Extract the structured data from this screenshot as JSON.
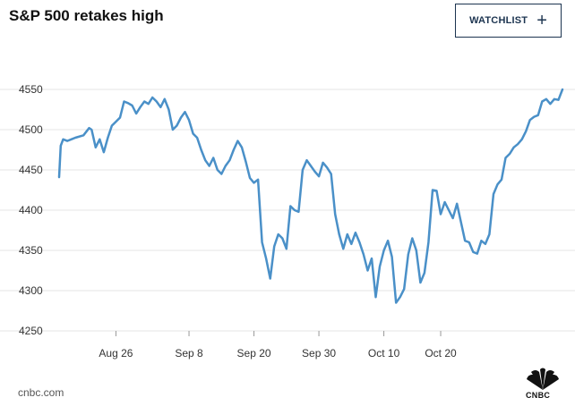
{
  "header": {
    "title": "S&P 500 retakes high",
    "watchlist_label": "WATCHLIST",
    "watchlist_icon": "plus-icon"
  },
  "footer": {
    "source": "cnbc.com",
    "logo_text": "CNBC",
    "logo_icon": "peacock-logo-icon"
  },
  "colors": {
    "line": "#4a90c8",
    "grid": "#e6e6e6",
    "button_border": "#1c3450"
  },
  "chart_data": {
    "type": "line",
    "title": "S&P 500 retakes high",
    "xlabel": "",
    "ylabel": "",
    "ylim": [
      4250,
      4575
    ],
    "yticks": [
      4250,
      4300,
      4350,
      4400,
      4450,
      4500,
      4550
    ],
    "xticks": [
      {
        "label": "Aug 26",
        "x": 7
      },
      {
        "label": "Sep 8",
        "x": 16
      },
      {
        "label": "Sep 20",
        "x": 24
      },
      {
        "label": "Sep 30",
        "x": 32
      },
      {
        "label": "Oct 10",
        "x": 40
      },
      {
        "label": "Oct 20",
        "x": 47
      }
    ],
    "grid": true,
    "series": [
      {
        "values": [
          [
            0.0,
            4441
          ],
          [
            0.2,
            4480
          ],
          [
            0.5,
            4488
          ],
          [
            1.0,
            4486
          ],
          [
            1.5,
            4488
          ],
          [
            2.0,
            4490
          ],
          [
            3.0,
            4493
          ],
          [
            3.7,
            4502
          ],
          [
            4.0,
            4500
          ],
          [
            4.5,
            4478
          ],
          [
            5.0,
            4488
          ],
          [
            5.5,
            4472
          ],
          [
            6.0,
            4490
          ],
          [
            6.5,
            4505
          ],
          [
            7.0,
            4510
          ],
          [
            7.5,
            4515
          ],
          [
            8.0,
            4535
          ],
          [
            8.5,
            4533
          ],
          [
            9.0,
            4530
          ],
          [
            9.5,
            4520
          ],
          [
            10.0,
            4528
          ],
          [
            10.5,
            4535
          ],
          [
            11.0,
            4532
          ],
          [
            11.5,
            4540
          ],
          [
            12.0,
            4535
          ],
          [
            12.5,
            4528
          ],
          [
            13.0,
            4538
          ],
          [
            13.5,
            4525
          ],
          [
            14.0,
            4500
          ],
          [
            14.5,
            4505
          ],
          [
            15.0,
            4515
          ],
          [
            15.5,
            4522
          ],
          [
            16.0,
            4512
          ],
          [
            16.5,
            4495
          ],
          [
            17.0,
            4490
          ],
          [
            17.5,
            4475
          ],
          [
            18.0,
            4462
          ],
          [
            18.5,
            4455
          ],
          [
            19.0,
            4465
          ],
          [
            19.5,
            4450
          ],
          [
            20.0,
            4445
          ],
          [
            20.5,
            4455
          ],
          [
            21.0,
            4462
          ],
          [
            21.5,
            4475
          ],
          [
            22.0,
            4486
          ],
          [
            22.5,
            4478
          ],
          [
            23.0,
            4460
          ],
          [
            23.5,
            4440
          ],
          [
            24.0,
            4434
          ],
          [
            24.5,
            4438
          ],
          [
            25.0,
            4360
          ],
          [
            25.5,
            4340
          ],
          [
            26.0,
            4315
          ],
          [
            26.5,
            4355
          ],
          [
            27.0,
            4370
          ],
          [
            27.5,
            4365
          ],
          [
            28.0,
            4352
          ],
          [
            28.5,
            4405
          ],
          [
            29.0,
            4400
          ],
          [
            29.5,
            4398
          ],
          [
            30.0,
            4450
          ],
          [
            30.5,
            4462
          ],
          [
            31.0,
            4455
          ],
          [
            31.5,
            4448
          ],
          [
            32.0,
            4442
          ],
          [
            32.5,
            4459
          ],
          [
            33.0,
            4453
          ],
          [
            33.5,
            4445
          ],
          [
            34.0,
            4395
          ],
          [
            34.5,
            4370
          ],
          [
            35.0,
            4352
          ],
          [
            35.5,
            4370
          ],
          [
            36.0,
            4358
          ],
          [
            36.5,
            4372
          ],
          [
            37.0,
            4360
          ],
          [
            37.5,
            4345
          ],
          [
            38.0,
            4325
          ],
          [
            38.5,
            4340
          ],
          [
            39.0,
            4292
          ],
          [
            39.5,
            4330
          ],
          [
            40.0,
            4350
          ],
          [
            40.5,
            4362
          ],
          [
            41.0,
            4342
          ],
          [
            41.5,
            4285
          ],
          [
            42.0,
            4292
          ],
          [
            42.5,
            4302
          ],
          [
            43.0,
            4345
          ],
          [
            43.5,
            4365
          ],
          [
            44.0,
            4350
          ],
          [
            44.5,
            4310
          ],
          [
            45.0,
            4322
          ],
          [
            45.5,
            4360
          ],
          [
            46.0,
            4425
          ],
          [
            46.5,
            4424
          ],
          [
            47.0,
            4395
          ],
          [
            47.5,
            4410
          ],
          [
            48.0,
            4400
          ],
          [
            48.5,
            4390
          ],
          [
            49.0,
            4408
          ],
          [
            49.5,
            4385
          ],
          [
            50.0,
            4362
          ],
          [
            50.5,
            4360
          ],
          [
            51.0,
            4348
          ],
          [
            51.5,
            4346
          ],
          [
            52.0,
            4362
          ],
          [
            52.5,
            4358
          ],
          [
            53.0,
            4370
          ],
          [
            53.5,
            4420
          ],
          [
            54.0,
            4432
          ],
          [
            54.5,
            4438
          ],
          [
            55.0,
            4465
          ],
          [
            55.5,
            4470
          ],
          [
            56.0,
            4478
          ],
          [
            56.5,
            4482
          ],
          [
            57.0,
            4488
          ],
          [
            57.5,
            4498
          ],
          [
            58.0,
            4512
          ],
          [
            58.5,
            4516
          ],
          [
            59.0,
            4518
          ],
          [
            59.5,
            4535
          ],
          [
            60.0,
            4538
          ],
          [
            60.5,
            4532
          ],
          [
            61.0,
            4538
          ],
          [
            61.5,
            4537
          ],
          [
            62.0,
            4550
          ]
        ]
      }
    ]
  }
}
